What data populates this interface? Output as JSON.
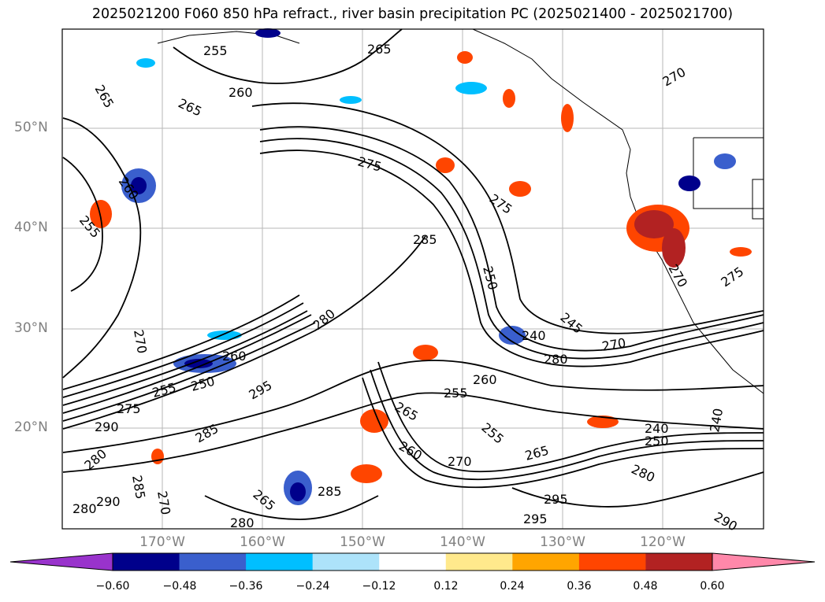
{
  "title": "2025021200 F060 850 hPa refract., river basin precipitation PC (2025021400 - 2025021700)",
  "lat_labels": [
    "50°N",
    "40°N",
    "30°N",
    "20°N"
  ],
  "lon_labels": [
    "170°W",
    "160°W",
    "150°W",
    "140°W",
    "130°W",
    "120°W"
  ],
  "contour_labels": [
    "255",
    "265",
    "260",
    "265",
    "265",
    "275",
    "260",
    "255",
    "285",
    "250",
    "275",
    "245",
    "240",
    "270",
    "280",
    "270",
    "270",
    "260",
    "255",
    "250",
    "260",
    "280",
    "295",
    "290",
    "285",
    "275",
    "280",
    "290",
    "285",
    "280",
    "270",
    "280",
    "265",
    "285",
    "255",
    "265",
    "260",
    "265",
    "270",
    "255",
    "280",
    "240",
    "250",
    "240",
    "295",
    "295",
    "290",
    "270",
    "275"
  ],
  "colorbar": {
    "ticks": [
      "−0.60",
      "−0.48",
      "−0.36",
      "−0.24",
      "−0.12",
      "0.12",
      "0.24",
      "0.36",
      "0.48",
      "0.60"
    ],
    "colors": [
      "#9933cc",
      "#00008b",
      "#3a5fcd",
      "#00bfff",
      "#ade3fa",
      "#ffffff",
      "#ffe98c",
      "#ffa500",
      "#ff4500",
      "#b22222",
      "#ff88aa"
    ]
  },
  "shading_colors": {
    "neg_strong": "#00008b",
    "neg_mid": "#3a5fcd",
    "neg_light": "#00bfff",
    "pos_light": "#ffa500",
    "pos_mid": "#ff4500",
    "pos_strong": "#b22222"
  }
}
